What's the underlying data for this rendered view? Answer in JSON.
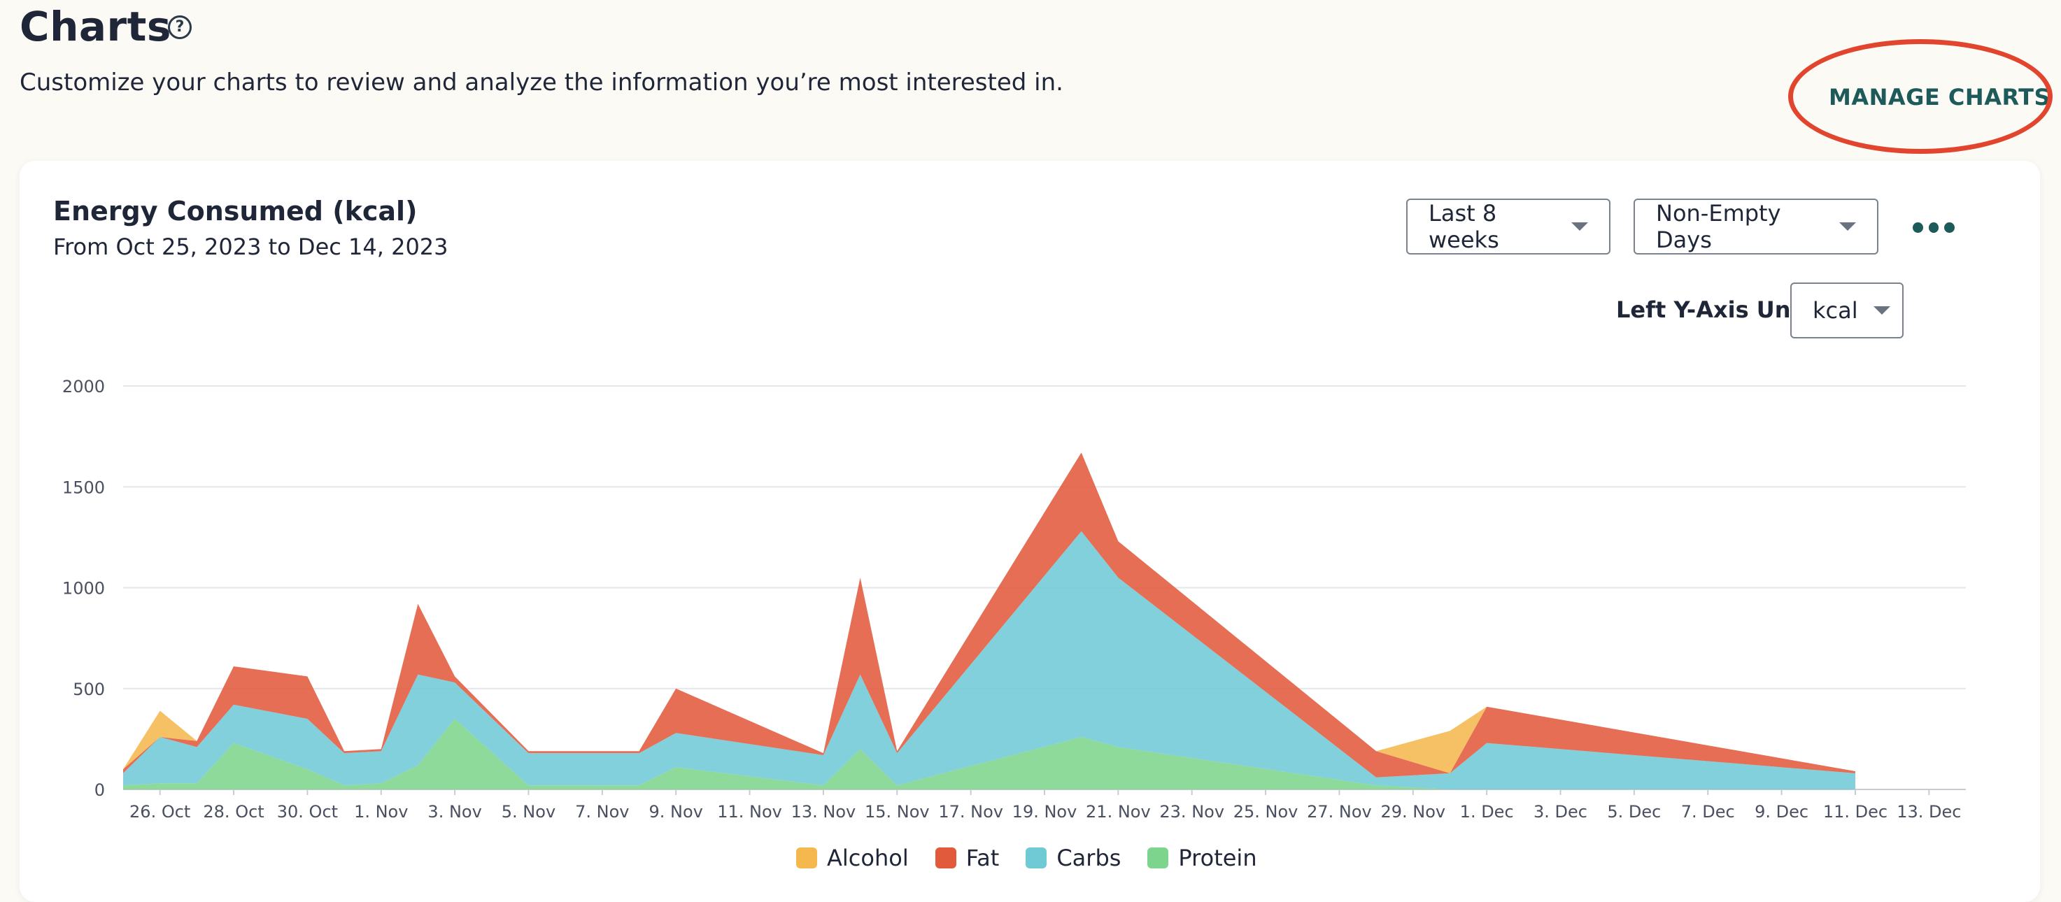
{
  "page": {
    "title": "Charts",
    "subtitle": "Customize your charts to review and analyze the information you’re most interested in.",
    "help_icon": "question-circle-icon",
    "manage_button": "MANAGE CHARTS"
  },
  "card": {
    "title": "Energy Consumed (kcal)",
    "range": "From Oct 25, 2023 to Dec 14, 2023",
    "period_dropdown": "Last 8 weeks",
    "days_dropdown": "Non-Empty Days",
    "unit_label": "Left Y-Axis Unit",
    "unit_dropdown": "kcal",
    "more_icon": "more-horizontal-icon"
  },
  "colors": {
    "alcohol": "#f5b84e",
    "fat": "#e15a3c",
    "carbs": "#6fcad6",
    "protein": "#7dd58d",
    "accent": "#1d5a5a",
    "annotation": "#e1452e"
  },
  "chart_data": {
    "type": "area",
    "stacked": true,
    "title": "Energy Consumed (kcal)",
    "ylim": [
      0,
      2000
    ],
    "yticks": [
      0,
      500,
      1000,
      1500,
      2000
    ],
    "xlim": [
      "2023-10-25",
      "2023-12-14"
    ],
    "xtick_labels": [
      "26. Oct",
      "28. Oct",
      "30. Oct",
      "1. Nov",
      "3. Nov",
      "5. Nov",
      "7. Nov",
      "9. Nov",
      "11. Nov",
      "13. Nov",
      "15. Nov",
      "17. Nov",
      "19. Nov",
      "21. Nov",
      "23. Nov",
      "25. Nov",
      "27. Nov",
      "29. Nov",
      "1. Dec",
      "3. Dec",
      "5. Dec",
      "7. Dec",
      "9. Dec",
      "11. Dec",
      "13. Dec"
    ],
    "xtick_dates": [
      "2023-10-26",
      "2023-10-28",
      "2023-10-30",
      "2023-11-01",
      "2023-11-03",
      "2023-11-05",
      "2023-11-07",
      "2023-11-09",
      "2023-11-11",
      "2023-11-13",
      "2023-11-15",
      "2023-11-17",
      "2023-11-19",
      "2023-11-21",
      "2023-11-23",
      "2023-11-25",
      "2023-11-27",
      "2023-11-29",
      "2023-12-01",
      "2023-12-03",
      "2023-12-05",
      "2023-12-07",
      "2023-12-09",
      "2023-12-11",
      "2023-12-13"
    ],
    "grid": true,
    "legend_position": "bottom-center",
    "x": [
      "2023-10-25",
      "2023-10-26",
      "2023-10-27",
      "2023-10-28",
      "2023-10-30",
      "2023-10-31",
      "2023-11-01",
      "2023-11-02",
      "2023-11-03",
      "2023-11-05",
      "2023-11-06",
      "2023-11-08",
      "2023-11-09",
      "2023-11-13",
      "2023-11-14",
      "2023-11-15",
      "2023-11-20",
      "2023-11-21",
      "2023-11-28",
      "2023-11-30",
      "2023-12-01",
      "2023-12-11"
    ],
    "series": [
      {
        "name": "Protein",
        "color": "#7dd58d",
        "values": [
          20,
          30,
          30,
          230,
          100,
          20,
          30,
          120,
          350,
          20,
          20,
          20,
          110,
          20,
          200,
          20,
          260,
          210,
          20,
          0,
          0,
          0
        ]
      },
      {
        "name": "Carbs",
        "color": "#6fcad6",
        "values": [
          60,
          230,
          180,
          190,
          250,
          160,
          160,
          450,
          180,
          160,
          160,
          160,
          170,
          150,
          370,
          160,
          1020,
          840,
          40,
          80,
          230,
          80
        ]
      },
      {
        "name": "Fat",
        "color": "#e15a3c",
        "values": [
          20,
          0,
          30,
          190,
          210,
          10,
          10,
          350,
          30,
          10,
          10,
          10,
          220,
          10,
          480,
          10,
          390,
          180,
          130,
          0,
          180,
          10
        ]
      },
      {
        "name": "Alcohol",
        "color": "#f5b84e",
        "values": [
          0,
          130,
          0,
          0,
          0,
          0,
          0,
          0,
          0,
          0,
          0,
          0,
          0,
          0,
          0,
          0,
          0,
          0,
          0,
          210,
          0,
          0
        ]
      }
    ]
  },
  "legend": [
    {
      "label": "Alcohol",
      "color": "#f5b84e"
    },
    {
      "label": "Fat",
      "color": "#e15a3c"
    },
    {
      "label": "Carbs",
      "color": "#6fcad6"
    },
    {
      "label": "Protein",
      "color": "#7dd58d"
    }
  ]
}
